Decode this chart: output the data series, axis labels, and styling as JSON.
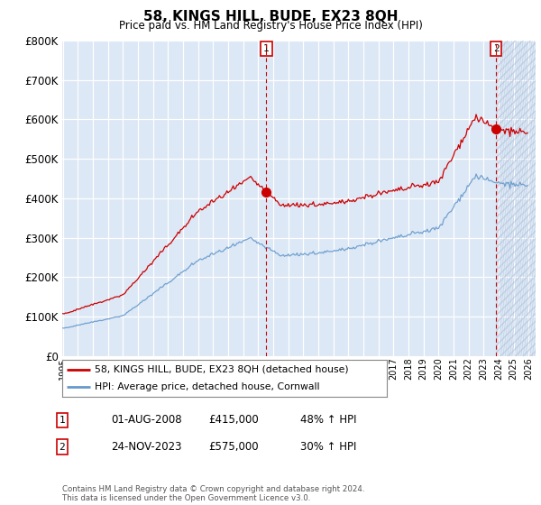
{
  "title": "58, KINGS HILL, BUDE, EX23 8QH",
  "subtitle": "Price paid vs. HM Land Registry's House Price Index (HPI)",
  "red_label": "58, KINGS HILL, BUDE, EX23 8QH (detached house)",
  "blue_label": "HPI: Average price, detached house, Cornwall",
  "transaction1_date": "01-AUG-2008",
  "transaction1_price": "£415,000",
  "transaction1_note": "48% ↑ HPI",
  "transaction2_date": "24-NOV-2023",
  "transaction2_price": "£575,000",
  "transaction2_note": "30% ↑ HPI",
  "footer": "Contains HM Land Registry data © Crown copyright and database right 2024.\nThis data is licensed under the Open Government Licence v3.0.",
  "red_color": "#cc0000",
  "blue_color": "#6699cc",
  "vline_color": "#cc0000",
  "background_color": "#dce8f5",
  "grid_color": "#ffffff",
  "ylim": [
    0,
    800000
  ],
  "yticks": [
    0,
    100000,
    200000,
    300000,
    400000,
    500000,
    600000,
    700000,
    800000
  ],
  "t1_year": 2008.583,
  "t2_year": 2023.875,
  "price_t1": 415000,
  "price_t2": 575000
}
